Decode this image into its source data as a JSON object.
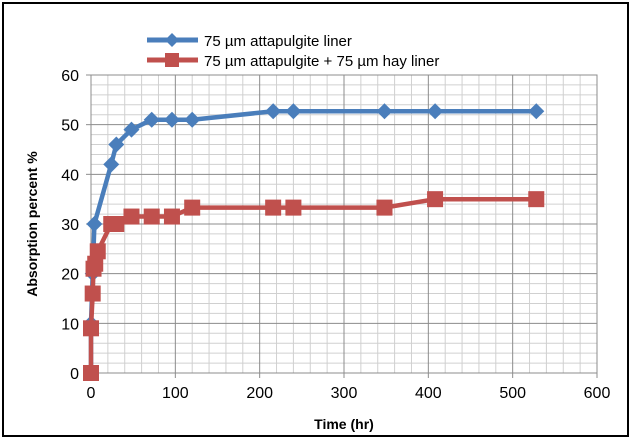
{
  "chart_data": {
    "type": "line",
    "xlabel": "Time (hr)",
    "ylabel": "Absorption percent %",
    "xlim": [
      0,
      600
    ],
    "ylim": [
      0,
      60
    ],
    "xticks": [
      "0",
      "100",
      "200",
      "300",
      "400",
      "500",
      "600"
    ],
    "yticks": [
      "0",
      "10",
      "20",
      "30",
      "40",
      "50",
      "60"
    ],
    "grid": true,
    "legend_position": "top",
    "series": [
      {
        "name": "75 µm attapulgite liner",
        "color": "#4a7ebb",
        "marker": "diamond",
        "points": [
          [
            0,
            0
          ],
          [
            0,
            10
          ],
          [
            2,
            20
          ],
          [
            4,
            30
          ],
          [
            24,
            42
          ],
          [
            30,
            46
          ],
          [
            48,
            49
          ],
          [
            72,
            51
          ],
          [
            96,
            51
          ],
          [
            120,
            51
          ],
          [
            216,
            52.7
          ],
          [
            240,
            52.7
          ],
          [
            348,
            52.7
          ],
          [
            408,
            52.7
          ],
          [
            528,
            52.7
          ]
        ]
      },
      {
        "name": "75 µm attapulgite + 75 µm hay liner",
        "color": "#c0504d",
        "marker": "square",
        "points": [
          [
            0,
            0
          ],
          [
            0,
            9
          ],
          [
            2,
            16
          ],
          [
            3,
            21
          ],
          [
            5,
            22
          ],
          [
            8,
            24.5
          ],
          [
            24,
            30
          ],
          [
            30,
            30
          ],
          [
            48,
            31.5
          ],
          [
            72,
            31.5
          ],
          [
            96,
            31.5
          ],
          [
            120,
            33.3
          ],
          [
            216,
            33.3
          ],
          [
            240,
            33.3
          ],
          [
            348,
            33.3
          ],
          [
            408,
            35
          ],
          [
            528,
            35
          ]
        ]
      }
    ]
  }
}
